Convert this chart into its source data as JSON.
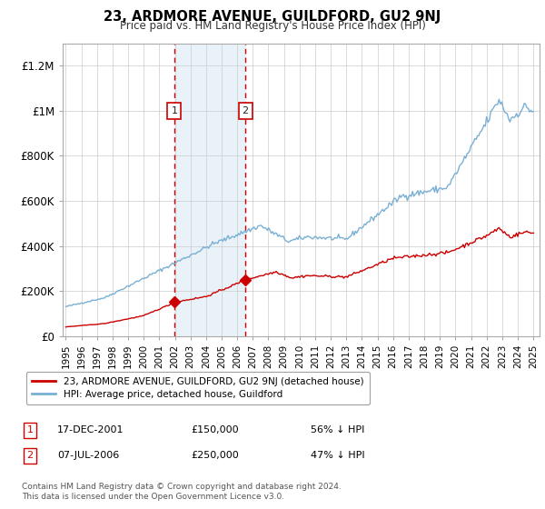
{
  "title": "23, ARDMORE AVENUE, GUILDFORD, GU2 9NJ",
  "subtitle": "Price paid vs. HM Land Registry's House Price Index (HPI)",
  "background_color": "#ffffff",
  "plot_bg_color": "#ffffff",
  "grid_color": "#cccccc",
  "ylim": [
    0,
    1300000
  ],
  "yticks": [
    0,
    200000,
    400000,
    600000,
    800000,
    1000000,
    1200000
  ],
  "ytick_labels": [
    "£0",
    "£200K",
    "£400K",
    "£600K",
    "£800K",
    "£1M",
    "£1.2M"
  ],
  "sale1_date": 2001.96,
  "sale1_price": 150000,
  "sale1_label": "1",
  "sale2_date": 2006.52,
  "sale2_price": 250000,
  "sale2_label": "2",
  "sale_color": "#cc0000",
  "hpi_color": "#7ab0d4",
  "shaded_color": "#e8f2f8",
  "vline_color": "#cc0000",
  "legend_label_sale": "23, ARDMORE AVENUE, GUILDFORD, GU2 9NJ (detached house)",
  "legend_label_hpi": "HPI: Average price, detached house, Guildford",
  "footer1": "Contains HM Land Registry data © Crown copyright and database right 2024.",
  "footer2": "This data is licensed under the Open Government Licence v3.0.",
  "table_row1": [
    "1",
    "17-DEC-2001",
    "£150,000",
    "56% ↓ HPI"
  ],
  "table_row2": [
    "2",
    "07-JUL-2006",
    "£250,000",
    "47% ↓ HPI"
  ]
}
